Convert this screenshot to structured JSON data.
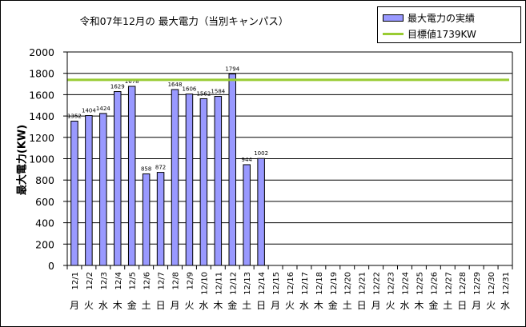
{
  "chart_data": {
    "type": "bar",
    "title": "令和07年12月の 最大電力（当別キャンパス）",
    "ylabel": "最大電力(KW)",
    "xlabel": "",
    "ylim": [
      0,
      2000
    ],
    "yticks": [
      0,
      200,
      400,
      600,
      800,
      1000,
      1200,
      1400,
      1600,
      1800,
      2000
    ],
    "grid": true,
    "legend_position": "top-right",
    "categories": [
      "12/1",
      "12/2",
      "12/3",
      "12/4",
      "12/5",
      "12/6",
      "12/7",
      "12/8",
      "12/9",
      "12/10",
      "12/11",
      "12/12",
      "12/13",
      "12/14",
      "12/15",
      "12/16",
      "12/17",
      "12/18",
      "12/19",
      "12/20",
      "12/21",
      "12/22",
      "12/23",
      "12/24",
      "12/25",
      "12/26",
      "12/27",
      "12/28",
      "12/29",
      "12/30",
      "12/31"
    ],
    "weekdays": [
      "月",
      "火",
      "水",
      "木",
      "金",
      "土",
      "日",
      "月",
      "火",
      "水",
      "木",
      "金",
      "土",
      "日",
      "月",
      "火",
      "水",
      "木",
      "金",
      "土",
      "日",
      "月",
      "火",
      "水",
      "木",
      "金",
      "土",
      "日",
      "月",
      "火",
      "水"
    ],
    "series": [
      {
        "name": "最大電力の実績",
        "type": "bar",
        "color": "#9999ff",
        "values": [
          1352,
          1404,
          1424,
          1629,
          1678,
          858,
          872,
          1648,
          1606,
          1562,
          1584,
          1794,
          944,
          1002,
          null,
          null,
          null,
          null,
          null,
          null,
          null,
          null,
          null,
          null,
          null,
          null,
          null,
          null,
          null,
          null,
          null
        ]
      },
      {
        "name": "目標値1739KW",
        "type": "line",
        "color": "#99cc33",
        "value": 1739
      }
    ]
  }
}
